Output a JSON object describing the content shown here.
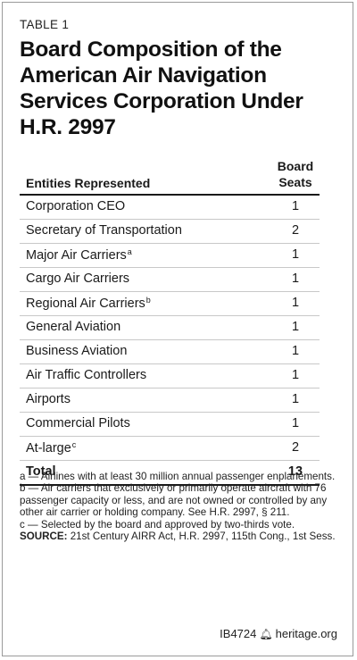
{
  "table_label": "TABLE 1",
  "title": "Board Composition of the American Air Navigation Services Corporation Under H.R. 2997",
  "columns": {
    "entity": "Entities Represented",
    "seats_line1": "Board",
    "seats_line2": "Seats"
  },
  "rows": [
    {
      "name": "Corporation CEO",
      "sup": "",
      "seats": "1"
    },
    {
      "name": "Secretary of Transportation",
      "sup": "",
      "seats": "2"
    },
    {
      "name": "Major Air Carriers",
      "sup": "a",
      "seats": "1"
    },
    {
      "name": "Cargo Air Carriers",
      "sup": "",
      "seats": "1"
    },
    {
      "name": "Regional Air Carriers",
      "sup": "b",
      "seats": "1"
    },
    {
      "name": "General Aviation",
      "sup": "",
      "seats": "1"
    },
    {
      "name": "Business Aviation",
      "sup": "",
      "seats": "1"
    },
    {
      "name": "Air Traffic Controllers",
      "sup": "",
      "seats": "1"
    },
    {
      "name": "Airports",
      "sup": "",
      "seats": "1"
    },
    {
      "name": "Commercial Pilots",
      "sup": "",
      "seats": "1"
    },
    {
      "name": "At-large",
      "sup": "c",
      "seats": "2"
    }
  ],
  "total": {
    "label": "Total",
    "seats": "13"
  },
  "notes": {
    "a": "a — Airlines with at least 30 million annual passenger enplanements.",
    "b": "b — Air carriers that exclusively or primarily operate aircraft with 76 passenger capacity or less, and are not owned or controlled by any other air carrier or holding company. See H.R. 2997, § 211.",
    "c": "c — Selected by the board and approved by two-thirds vote.",
    "source_label": "SOURCE:",
    "source_text": " 21st Century AIRR Act, H.R. 2997, 115th Cong., 1st Sess."
  },
  "footer": {
    "code": "IB4724",
    "site": "heritage.org",
    "bell_icon": "bell-icon"
  }
}
